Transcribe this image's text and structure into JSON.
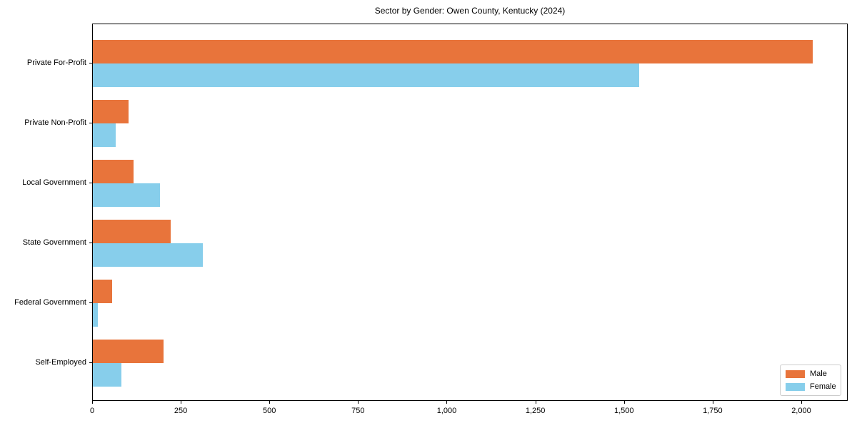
{
  "chart_data": {
    "type": "bar",
    "orientation": "horizontal",
    "title": "Sector by Gender: Owen County, Kentucky (2024)",
    "categories": [
      "Private For-Profit",
      "Private Non-Profit",
      "Local Government",
      "State Government",
      "Federal Government",
      "Self-Employed"
    ],
    "series": [
      {
        "name": "Male",
        "color": "#e8743b",
        "values": [
          2030,
          100,
          115,
          220,
          55,
          200
        ]
      },
      {
        "name": "Female",
        "color": "#87ceeb",
        "values": [
          1540,
          65,
          190,
          310,
          15,
          80
        ]
      }
    ],
    "xlabel": "",
    "ylabel": "",
    "xlim": [
      0,
      2131
    ],
    "xticks": [
      0,
      250,
      500,
      750,
      1000,
      1250,
      1500,
      1750,
      2000
    ],
    "xtick_labels": [
      "0",
      "250",
      "500",
      "750",
      "1,000",
      "1,250",
      "1,500",
      "1,750",
      "2,000"
    ],
    "grid": false,
    "legend_position": "lower right",
    "background_color": "#ffffff",
    "spine_color": "#000000"
  }
}
